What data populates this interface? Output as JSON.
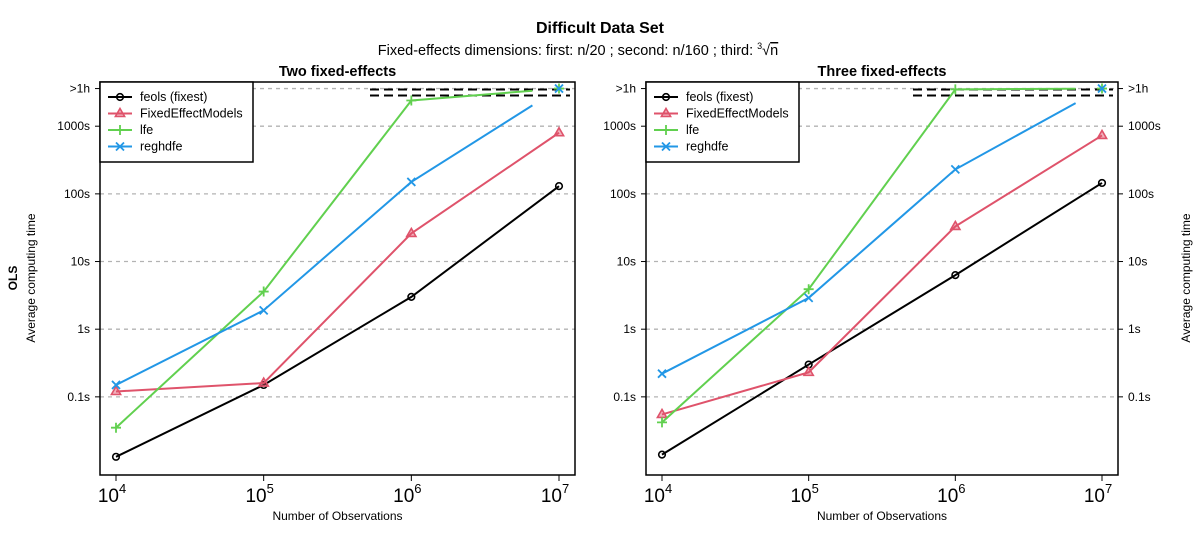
{
  "figure": {
    "title": "Difficult Data Set",
    "subtitle_prefix": "Fixed-effects dimensions: first: n",
    "subtitle_parts": [
      "20",
      " ; second: n",
      "160",
      " ; third: "
    ],
    "subtitle_root_index": "3",
    "subtitle_root_var": "n",
    "row_label": "OLS",
    "ylabel": "Average computing time",
    "xlabel": "Number of Observations"
  },
  "chart_data": [
    {
      "type": "line",
      "title": "Two fixed-effects",
      "xlabel": "Number of Observations",
      "ylabel": "Average computing time",
      "x_scale": "log10",
      "y_scale": "log10",
      "x": [
        10000,
        100000,
        1000000,
        10000000
      ],
      "x_tick_labels": [
        {
          "base": "10",
          "exp": "4"
        },
        {
          "base": "10",
          "exp": "5"
        },
        {
          "base": "10",
          "exp": "6"
        },
        {
          "base": "10",
          "exp": "7"
        }
      ],
      "y_ticks": [
        0.1,
        1,
        10,
        100,
        1000,
        3600
      ],
      "y_tick_labels": [
        "0.1s",
        "1s",
        "10s",
        "100s",
        "1000s",
        ">1h"
      ],
      "y_tick_side": "left",
      "ylim_seconds": [
        0.007,
        4500
      ],
      "grid": true,
      "legend_position": "top-left",
      "series": [
        {
          "name": "feols (fixest)",
          "color": "#000000",
          "marker": "circle",
          "values": [
            0.013,
            0.15,
            3.0,
            130
          ],
          "truncated": false
        },
        {
          "name": "FixedEffectModels",
          "color": "#DF536B",
          "marker": "triangle",
          "values": [
            0.12,
            0.16,
            26,
            800
          ],
          "truncated": false
        },
        {
          "name": "lfe",
          "color": "#61D04F",
          "marker": "plus",
          "values": [
            0.035,
            3.6,
            2400,
            3600
          ],
          "truncated": true
        },
        {
          "name": "reghdfe",
          "color": "#2297E6",
          "marker": "x",
          "values": [
            0.15,
            1.9,
            150,
            3600
          ],
          "truncated": true
        }
      ]
    },
    {
      "type": "line",
      "title": "Three fixed-effects",
      "xlabel": "Number of Observations",
      "ylabel": "Average computing time",
      "x_scale": "log10",
      "y_scale": "log10",
      "x": [
        10000,
        100000,
        1000000,
        10000000
      ],
      "x_tick_labels": [
        {
          "base": "10",
          "exp": "4"
        },
        {
          "base": "10",
          "exp": "5"
        },
        {
          "base": "10",
          "exp": "6"
        },
        {
          "base": "10",
          "exp": "7"
        }
      ],
      "y_ticks": [
        0.1,
        1,
        10,
        100,
        1000,
        3600
      ],
      "y_tick_labels": [
        "0.1s",
        "1s",
        "10s",
        "100s",
        "1000s",
        ">1h"
      ],
      "y_tick_side": "both",
      "ylim_seconds": [
        0.007,
        4500
      ],
      "grid": true,
      "legend_position": "top-left",
      "series": [
        {
          "name": "feols (fixest)",
          "color": "#000000",
          "marker": "circle",
          "values": [
            0.014,
            0.3,
            6.3,
            145
          ],
          "truncated": false
        },
        {
          "name": "FixedEffectModels",
          "color": "#DF536B",
          "marker": "triangle",
          "values": [
            0.055,
            0.23,
            33,
            730
          ],
          "truncated": false
        },
        {
          "name": "lfe",
          "color": "#61D04F",
          "marker": "plus",
          "values": [
            0.042,
            3.9,
            3500,
            3600
          ],
          "truncated": true
        },
        {
          "name": "reghdfe",
          "color": "#2297E6",
          "marker": "x",
          "values": [
            0.22,
            2.9,
            230,
            3600
          ],
          "truncated": true
        }
      ]
    }
  ]
}
